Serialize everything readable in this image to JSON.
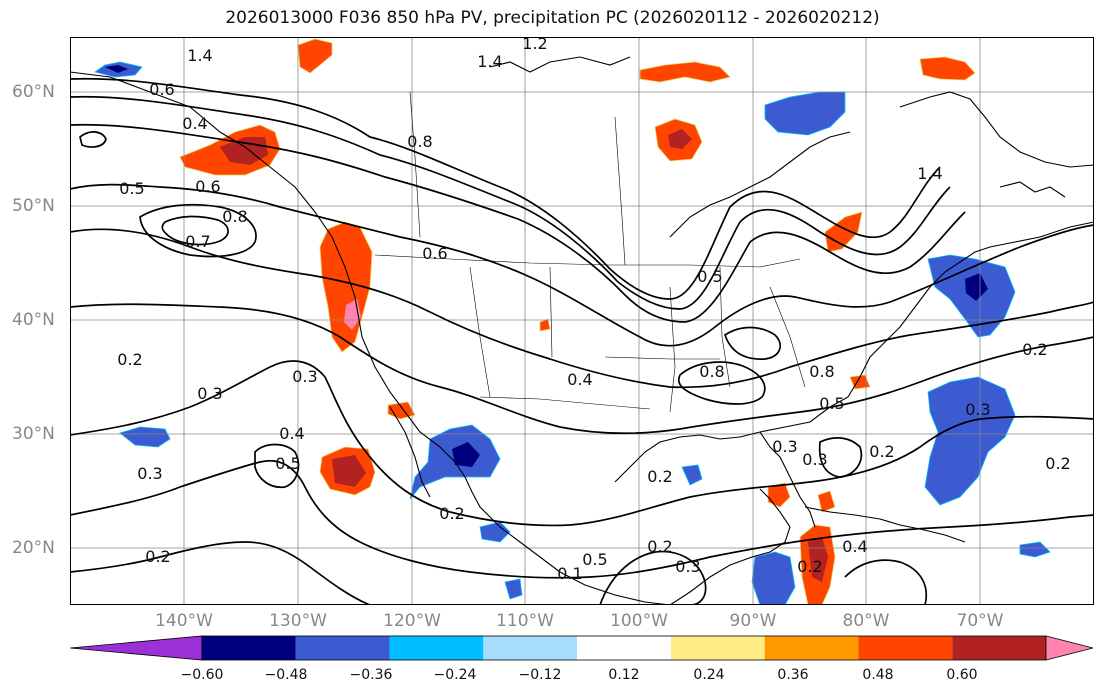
{
  "title": "2026013000 F036 850 hPa PV, precipitation PC (2026020112 - 2026020212)",
  "lat_labels": [
    "60°N",
    "50°N",
    "40°N",
    "30°N",
    "20°N"
  ],
  "lon_labels": [
    "140°W",
    "130°W",
    "120°W",
    "110°W",
    "100°W",
    "90°W",
    "80°W",
    "70°W"
  ],
  "contour_labels": [
    "1.4",
    "1.2",
    "1.4",
    "0.6",
    "0.4",
    "0.8",
    "0.5",
    "0.6",
    "0.8",
    "0.7",
    "0.6",
    "0.5",
    "0.2",
    "0.3",
    "0.3",
    "0.4",
    "0.5",
    "0.3",
    "0.2",
    "0.4",
    "0.8",
    "0.8",
    "0.5",
    "0.3",
    "0.2",
    "0.2",
    "0.3",
    "0.2",
    "0.4",
    "0.2",
    "0.1",
    "0.3",
    "0.5",
    "0.3",
    "0.2",
    "1.4",
    "0.2",
    "0.2"
  ],
  "colorbar": {
    "ticks": [
      "−0.60",
      "−0.48",
      "−0.36",
      "−0.24",
      "−0.12",
      "0.12",
      "0.24",
      "0.36",
      "0.48",
      "0.60"
    ],
    "colors": [
      "#9b30d9",
      "#00007f",
      "#3c5bd0",
      "#00bfff",
      "#a8dcff",
      "#ffffff",
      "#ffee88",
      "#ff9b00",
      "#ff4500",
      "#b22222",
      "#ff85b0"
    ]
  },
  "colors": {
    "coast": "#000000",
    "grid": "#888888",
    "contour": "#000000"
  }
}
